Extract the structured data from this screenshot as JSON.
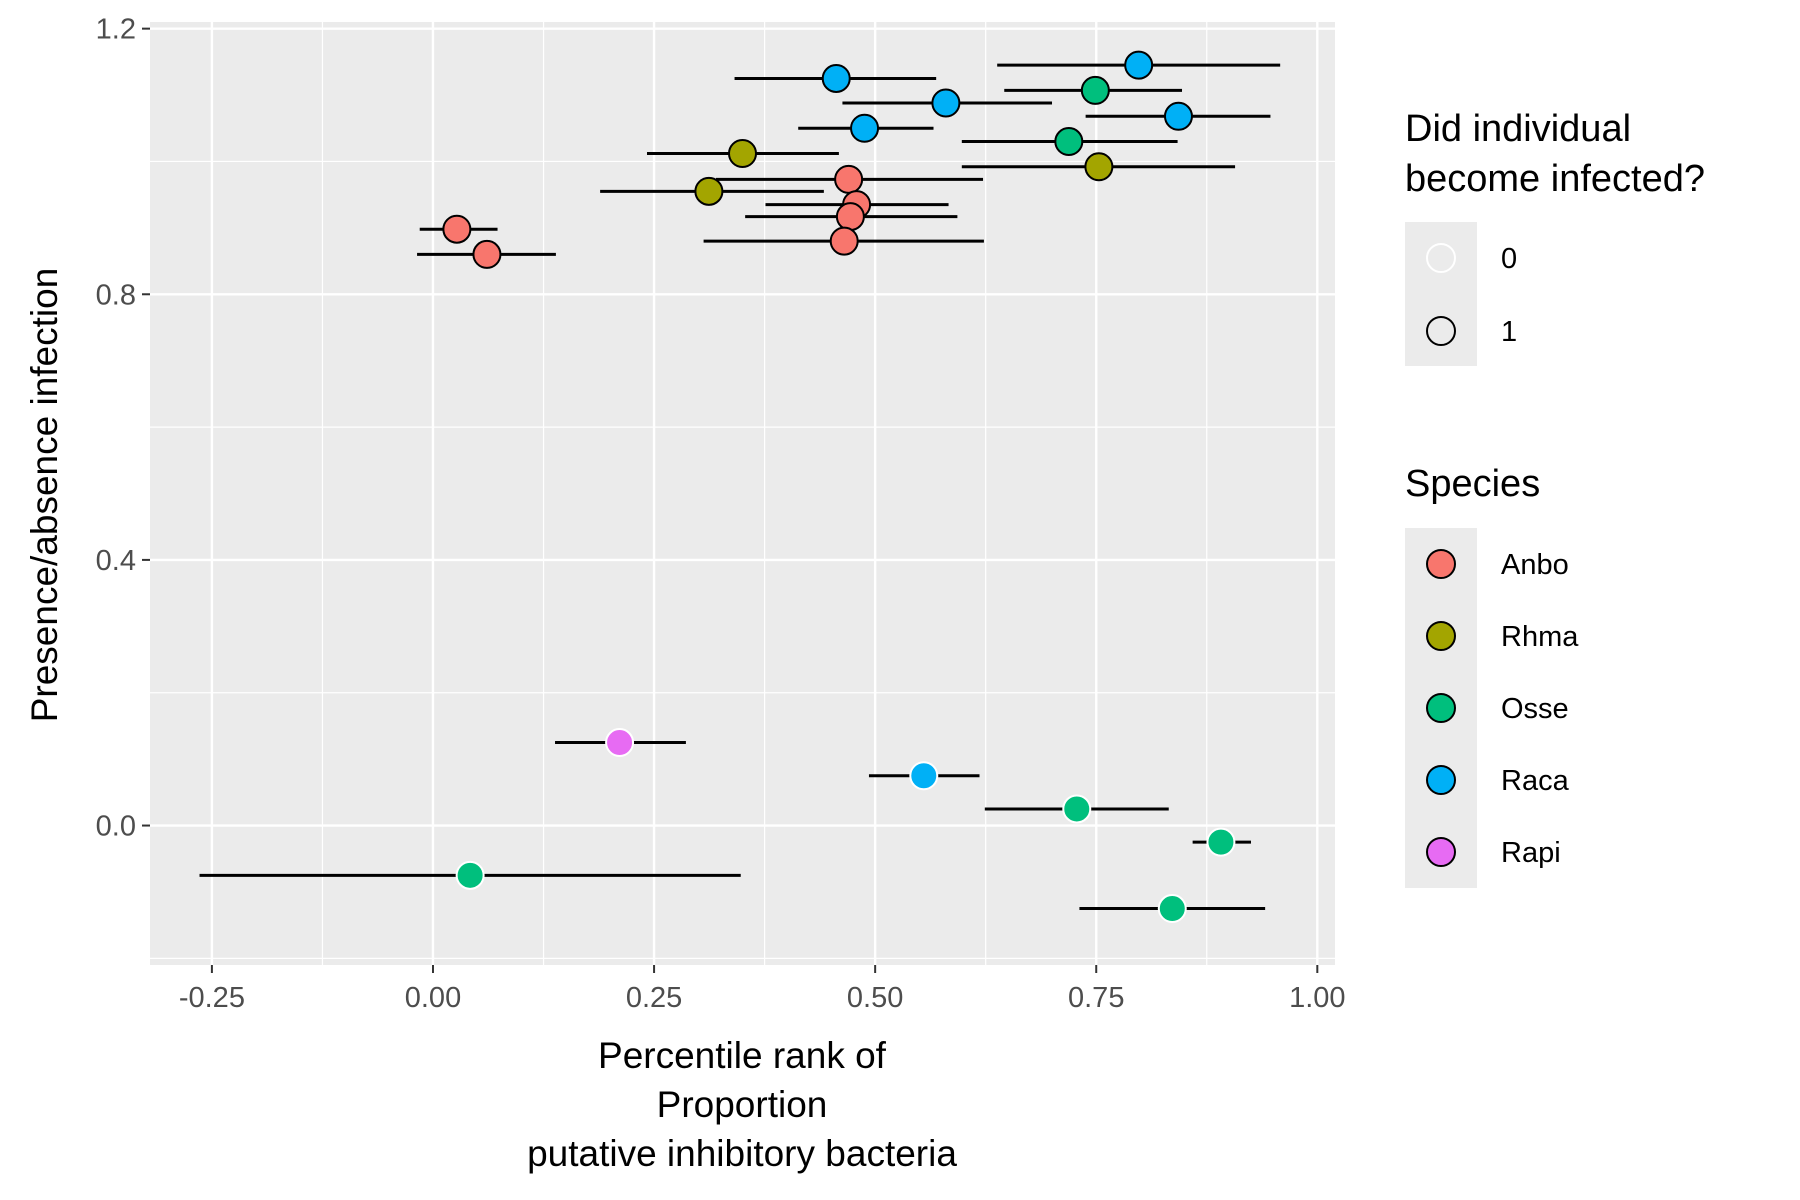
{
  "chart_data": {
    "type": "scatter",
    "xlabel_lines": [
      "Percentile rank of",
      "Proportion",
      "putative inhibitory bacteria"
    ],
    "ylabel": "Presence/absence infection",
    "xlim": [
      -0.32,
      1.02
    ],
    "ylim": [
      -0.21,
      1.21
    ],
    "x_ticks": [
      -0.25,
      0.0,
      0.25,
      0.5,
      0.75,
      1.0
    ],
    "x_tick_labels": [
      "-0.25",
      "0.00",
      "0.25",
      "0.50",
      "0.75",
      "1.00"
    ],
    "y_ticks": [
      0.0,
      0.4,
      0.8,
      1.2
    ],
    "y_tick_labels": [
      "0.0",
      "0.4",
      "0.8",
      "1.2"
    ],
    "grid": true,
    "legend_placement": "right",
    "legends": [
      {
        "title_lines": [
          "Did individual",
          "become infected?"
        ],
        "entries": [
          {
            "label": "0",
            "outline": "#ffffff"
          },
          {
            "label": "1",
            "outline": "#000000"
          }
        ]
      },
      {
        "title_lines": [
          "Species"
        ],
        "entries": [
          {
            "label": "Anbo",
            "color": "#F8766D"
          },
          {
            "label": "Rhma",
            "color": "#A3A500"
          },
          {
            "label": "Osse",
            "color": "#00BF7D"
          },
          {
            "label": "Raca",
            "color": "#00B0F6"
          },
          {
            "label": "Rapi",
            "color": "#E76BF3"
          }
        ]
      }
    ],
    "points": [
      {
        "species": "Raca",
        "infected": 1,
        "x": 0.798,
        "y": 1.145,
        "xmin": 0.638,
        "xmax": 0.958
      },
      {
        "species": "Raca",
        "infected": 1,
        "x": 0.456,
        "y": 1.125,
        "xmin": 0.341,
        "xmax": 0.569
      },
      {
        "species": "Osse",
        "infected": 1,
        "x": 0.749,
        "y": 1.107,
        "xmin": 0.646,
        "xmax": 0.847
      },
      {
        "species": "Raca",
        "infected": 1,
        "x": 0.58,
        "y": 1.088,
        "xmin": 0.463,
        "xmax": 0.7
      },
      {
        "species": "Raca",
        "infected": 1,
        "x": 0.843,
        "y": 1.068,
        "xmin": 0.738,
        "xmax": 0.947
      },
      {
        "species": "Raca",
        "infected": 1,
        "x": 0.488,
        "y": 1.05,
        "xmin": 0.413,
        "xmax": 0.566
      },
      {
        "species": "Osse",
        "infected": 1,
        "x": 0.719,
        "y": 1.03,
        "xmin": 0.598,
        "xmax": 0.842
      },
      {
        "species": "Rhma",
        "infected": 1,
        "x": 0.35,
        "y": 1.012,
        "xmin": 0.242,
        "xmax": 0.459
      },
      {
        "species": "Rhma",
        "infected": 1,
        "x": 0.753,
        "y": 0.992,
        "xmin": 0.598,
        "xmax": 0.907
      },
      {
        "species": "Anbo",
        "infected": 1,
        "x": 0.47,
        "y": 0.973,
        "xmin": 0.32,
        "xmax": 0.622
      },
      {
        "species": "Rhma",
        "infected": 1,
        "x": 0.312,
        "y": 0.955,
        "xmin": 0.189,
        "xmax": 0.442
      },
      {
        "species": "Anbo",
        "infected": 1,
        "x": 0.479,
        "y": 0.935,
        "xmin": 0.376,
        "xmax": 0.583
      },
      {
        "species": "Anbo",
        "infected": 1,
        "x": 0.472,
        "y": 0.917,
        "xmin": 0.353,
        "xmax": 0.593
      },
      {
        "species": "Anbo",
        "infected": 1,
        "x": 0.027,
        "y": 0.898,
        "xmin": -0.015,
        "xmax": 0.073
      },
      {
        "species": "Anbo",
        "infected": 1,
        "x": 0.465,
        "y": 0.88,
        "xmin": 0.306,
        "xmax": 0.623
      },
      {
        "species": "Anbo",
        "infected": 1,
        "x": 0.061,
        "y": 0.86,
        "xmin": -0.018,
        "xmax": 0.139
      },
      {
        "species": "Rapi",
        "infected": 0,
        "x": 0.211,
        "y": 0.125,
        "xmin": 0.138,
        "xmax": 0.286
      },
      {
        "species": "Raca",
        "infected": 0,
        "x": 0.555,
        "y": 0.075,
        "xmin": 0.493,
        "xmax": 0.618
      },
      {
        "species": "Osse",
        "infected": 0,
        "x": 0.728,
        "y": 0.025,
        "xmin": 0.624,
        "xmax": 0.832
      },
      {
        "species": "Osse",
        "infected": 0,
        "x": 0.891,
        "y": -0.025,
        "xmin": 0.859,
        "xmax": 0.925
      },
      {
        "species": "Osse",
        "infected": 0,
        "x": 0.042,
        "y": -0.075,
        "xmin": -0.264,
        "xmax": 0.348
      },
      {
        "species": "Osse",
        "infected": 0,
        "x": 0.836,
        "y": -0.125,
        "xmin": 0.731,
        "xmax": 0.941
      }
    ]
  }
}
